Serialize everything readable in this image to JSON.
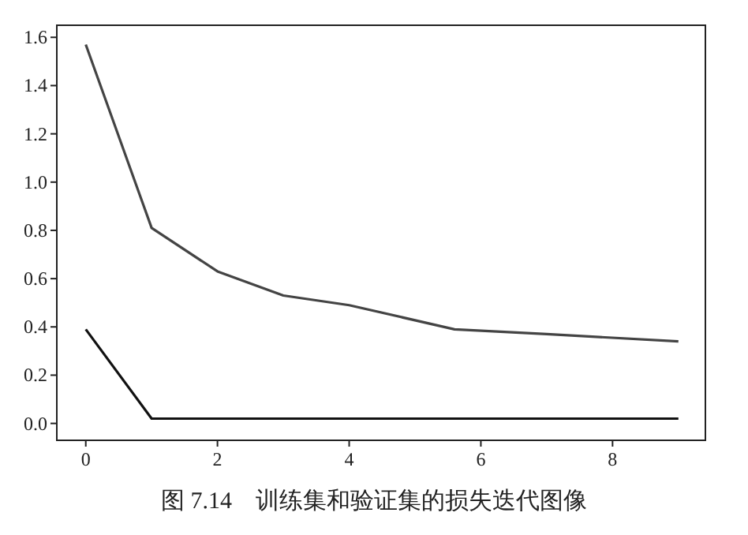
{
  "chart_data": {
    "type": "line",
    "x": [
      0,
      1,
      2,
      3,
      4,
      5.6,
      7,
      9
    ],
    "series": [
      {
        "color": "#444444",
        "values": [
          1.57,
          0.81,
          0.63,
          0.53,
          0.49,
          0.39,
          0.37,
          0.34
        ]
      },
      {
        "color": "#111111",
        "values": [
          0.39,
          0.02,
          0.02,
          0.02,
          0.02,
          0.02,
          0.02,
          0.02
        ]
      }
    ],
    "xlim": [
      -0.44,
      9.41
    ],
    "ylim": [
      -0.07,
      1.65
    ],
    "xticks": [
      0,
      2,
      4,
      6,
      8
    ],
    "yticks": [
      {
        "value": 0,
        "label": "0.0"
      },
      {
        "value": 0.2,
        "label": "0.2"
      },
      {
        "value": 0.4,
        "label": "0.4"
      },
      {
        "value": 0.6,
        "label": "0.6"
      },
      {
        "value": 0.8,
        "label": "0.8"
      },
      {
        "value": 1.0,
        "label": "1.0"
      },
      {
        "value": 1.2,
        "label": "1.2"
      },
      {
        "value": 1.4,
        "label": "1.4"
      },
      {
        "value": 1.6,
        "label": "1.6"
      }
    ],
    "grid": false,
    "marker": "none",
    "line_style": "solid",
    "annotations": [
      "图 7.14　训练集和验证集的损失迭代图像"
    ]
  }
}
